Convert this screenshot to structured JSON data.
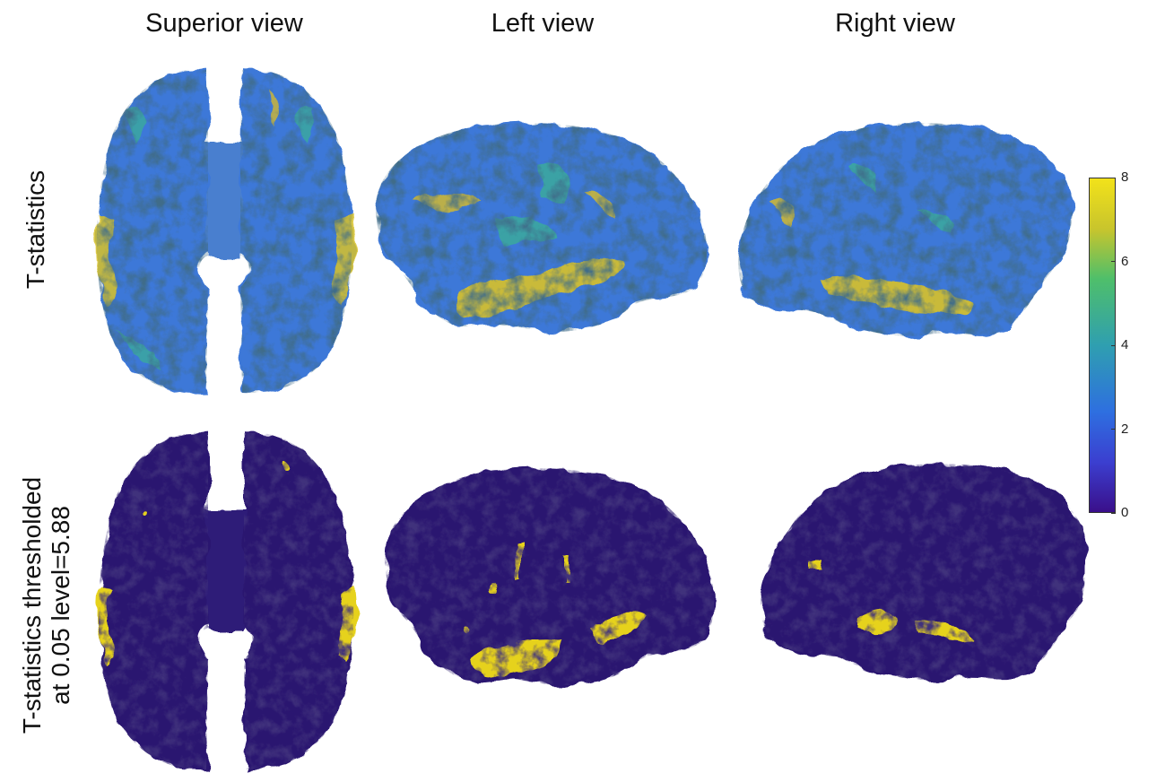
{
  "columns": {
    "superior": "Superior view",
    "left": "Left view",
    "right": "Right view"
  },
  "rows": {
    "top": "T-statistics",
    "bottom_line1": "T-statistics thresholded",
    "bottom_line2": "at 0.05 level=5.88"
  },
  "colorbar": {
    "ticks": [
      "0",
      "2",
      "4",
      "6",
      "8"
    ],
    "colormap_start": "#3a0f8a",
    "colormap_mid": "#2f9fb0",
    "colormap_end": "#f2e21a"
  },
  "colors": {
    "tstat_base": "#3c78d8",
    "tstat_dark": "#112a44",
    "tstat_teal": "#3aa7a0",
    "tstat_yellow": "#d9c22a",
    "thresh_base": "#2a1670",
    "thresh_dark": "#120a3a",
    "thresh_yellow": "#e6d21c"
  }
}
